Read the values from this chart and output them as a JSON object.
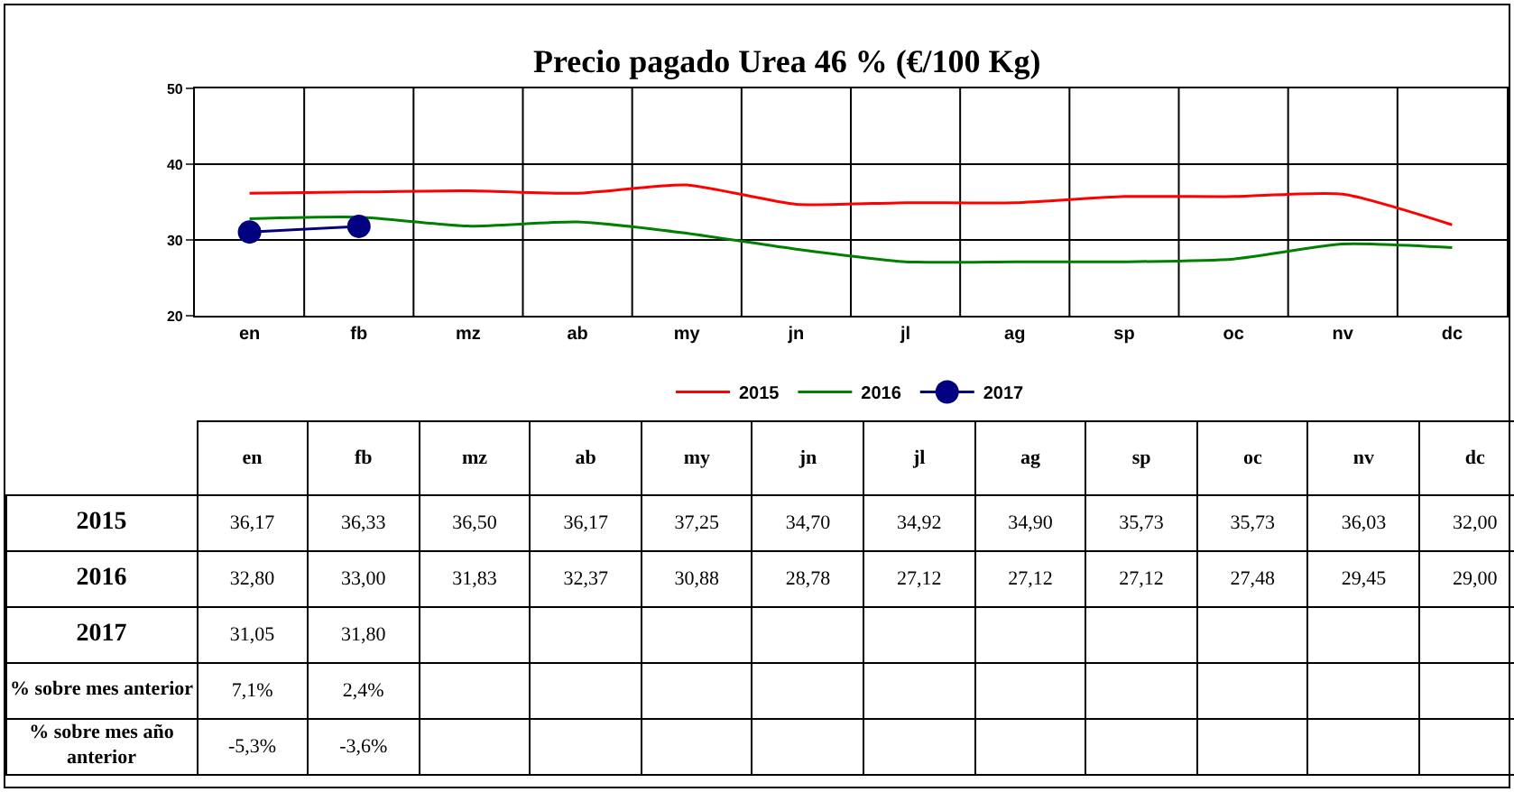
{
  "chart_data": {
    "type": "line",
    "title": "Precio pagado Urea 46 % (€/100 Kg)",
    "categories": [
      "en",
      "fb",
      "mz",
      "ab",
      "my",
      "jn",
      "jl",
      "ag",
      "sp",
      "oc",
      "nv",
      "dc"
    ],
    "series": [
      {
        "name": "2015",
        "color": "#ff0000",
        "marker": "none",
        "values": [
          36.17,
          36.33,
          36.5,
          36.17,
          37.25,
          34.7,
          34.92,
          34.9,
          35.73,
          35.73,
          36.03,
          32.0
        ],
        "value_labels": [
          "36,17",
          "36,33",
          "36,50",
          "36,17",
          "37,25",
          "34,70",
          "34,92",
          "34,90",
          "35,73",
          "35,73",
          "36,03",
          "32,00"
        ]
      },
      {
        "name": "2016",
        "color": "#008000",
        "marker": "none",
        "values": [
          32.8,
          33.0,
          31.83,
          32.37,
          30.88,
          28.78,
          27.12,
          27.12,
          27.12,
          27.48,
          29.45,
          29.0
        ],
        "value_labels": [
          "32,80",
          "33,00",
          "31,83",
          "32,37",
          "30,88",
          "28,78",
          "27,12",
          "27,12",
          "27,12",
          "27,48",
          "29,45",
          "29,00"
        ]
      },
      {
        "name": "2017",
        "color": "#000080",
        "marker": "circle",
        "values": [
          31.05,
          31.8,
          null,
          null,
          null,
          null,
          null,
          null,
          null,
          null,
          null,
          null
        ],
        "value_labels": [
          "31,05",
          "31,80",
          null,
          null,
          null,
          null,
          null,
          null,
          null,
          null,
          null,
          null
        ]
      }
    ],
    "ylim": [
      20,
      50
    ],
    "yticks": [
      20,
      30,
      40,
      50
    ],
    "grid": true,
    "legend": "bottom",
    "line_style": "solid",
    "annotations": [
      "% sobre mes anterior",
      "7,1%",
      "2,4%",
      "% sobre mes año anterior",
      "-5,3%",
      "-3,6%"
    ]
  }
}
